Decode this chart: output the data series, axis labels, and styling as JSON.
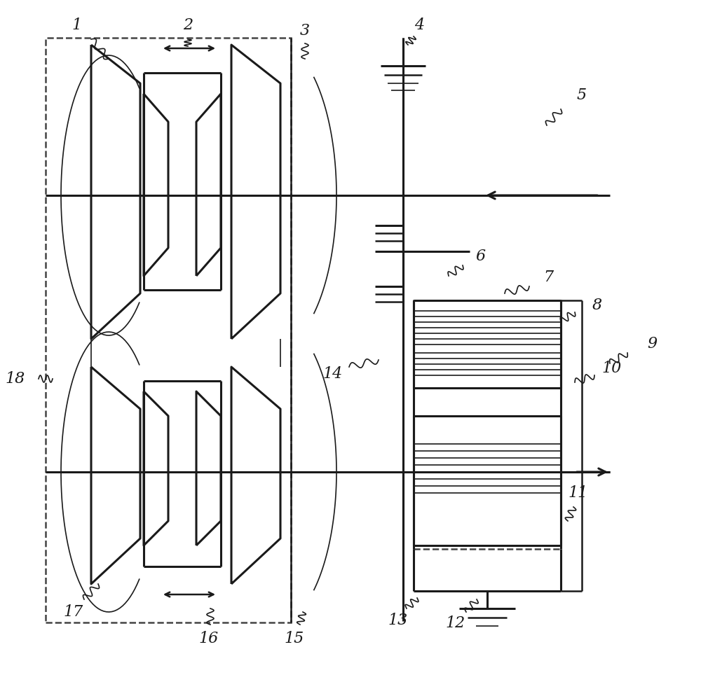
{
  "bg_color": "#ffffff",
  "line_color": "#1a1a1a",
  "lw_thin": 1.2,
  "lw_med": 1.8,
  "lw_thick": 2.2,
  "fig_width": 10.0,
  "fig_height": 9.74
}
